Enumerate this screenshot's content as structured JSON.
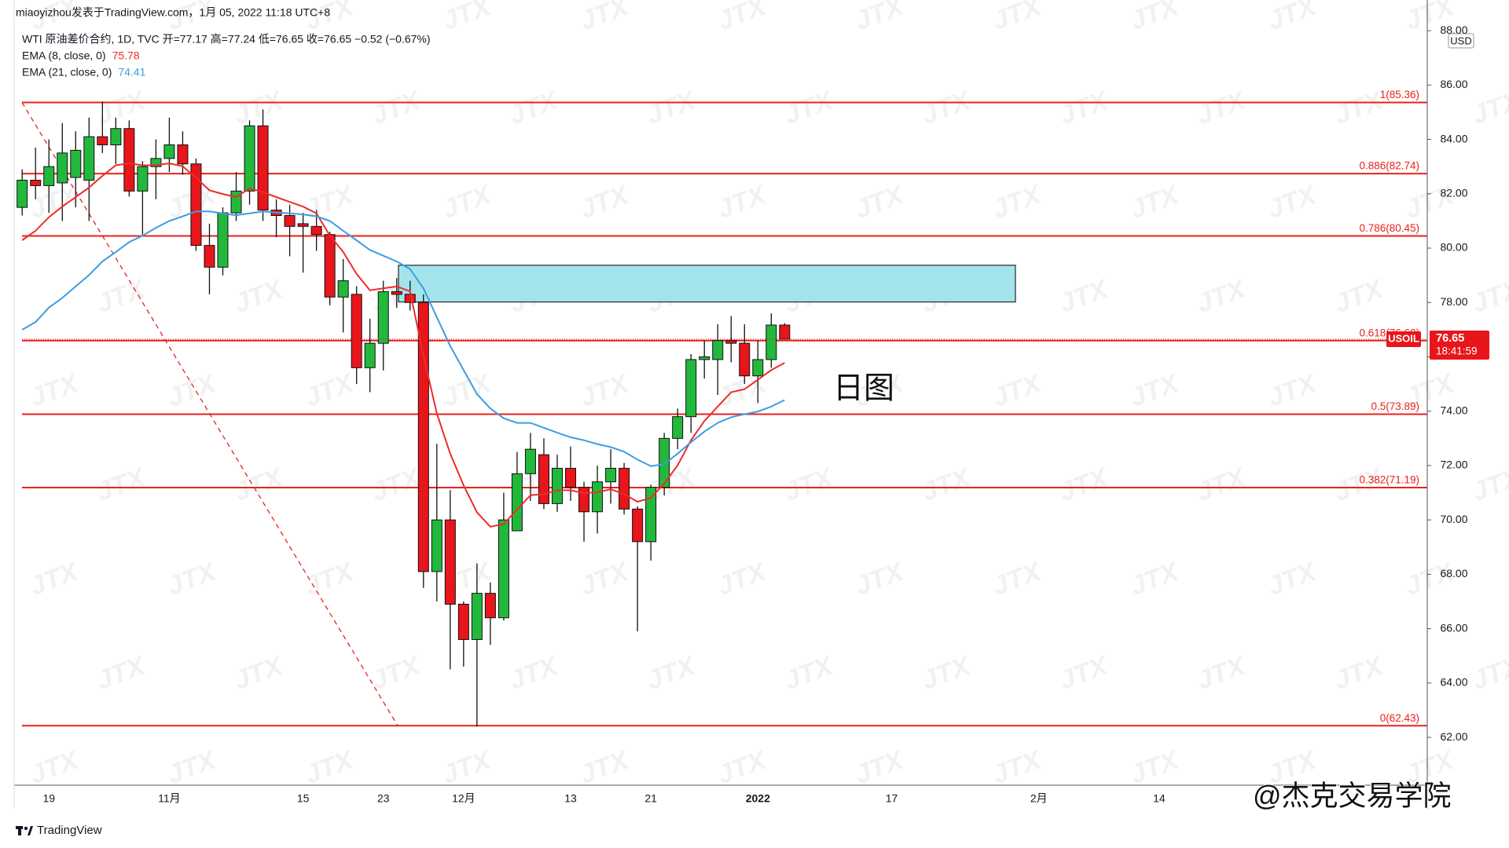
{
  "header": {
    "published": "miaoyizhou发表于TradingView.com，1月 05, 2022 11:18 UTC+8",
    "legend": "WTI 原油差价合约, 1D, TVC  开=77.17  高=77.24  低=76.65  收=76.65  −0.52 (−0.67%)"
  },
  "footer": {
    "logo": "TradingView",
    "credit": "@杰克交易学院"
  },
  "watermark": "JTX",
  "chart_data": {
    "type": "candlestick",
    "categories": [
      null,
      null,
      "19",
      null,
      null,
      null,
      null,
      null,
      null,
      null,
      null,
      "11月",
      null,
      null,
      null,
      null,
      null,
      null,
      null,
      null,
      null,
      "15",
      null,
      null,
      null,
      null,
      null,
      "23",
      null,
      null,
      null,
      null,
      null,
      "12月",
      null,
      null,
      null,
      null,
      null,
      null,
      null,
      "13",
      null,
      null,
      null,
      null,
      null,
      "21",
      null,
      null,
      null,
      null,
      null,
      null,
      null,
      "2022",
      null,
      null,
      null,
      null,
      null,
      null,
      null,
      null,
      null,
      "17",
      null,
      null,
      null,
      null,
      null,
      null,
      null,
      null,
      null,
      null,
      "2月",
      null,
      null,
      null,
      null,
      null,
      null,
      null,
      null,
      "14"
    ],
    "open": [
      81.5,
      82.5,
      82.3,
      82.4,
      82.6,
      82.5,
      84.1,
      83.8,
      84.4,
      82.1,
      83.0,
      83.3,
      83.8,
      83.1,
      80.1,
      79.3,
      81.3,
      82.1,
      84.5,
      81.4,
      81.2,
      80.9,
      80.8,
      80.5,
      78.2,
      78.3,
      75.6,
      76.5,
      78.4,
      78.3,
      78.0,
      68.1,
      70.0,
      66.9,
      65.6,
      67.3,
      66.4,
      69.6,
      71.7,
      72.4,
      70.6,
      71.9,
      71.2,
      70.3,
      71.4,
      71.9,
      70.4,
      69.2,
      71.2,
      73.0,
      73.8,
      75.9,
      75.9,
      76.6,
      76.5,
      75.3,
      75.9,
      77.17,
      null,
      null,
      null,
      null,
      null,
      null,
      null,
      null,
      null,
      null,
      null,
      null,
      null,
      null,
      null,
      null,
      null,
      null,
      null,
      null,
      null,
      null,
      null,
      null,
      null,
      null,
      null,
      null
    ],
    "high": [
      82.9,
      83.7,
      84.0,
      84.6,
      84.3,
      84.8,
      85.4,
      84.8,
      84.7,
      83.2,
      84.0,
      84.8,
      84.3,
      83.3,
      80.9,
      81.5,
      82.8,
      84.7,
      85.1,
      81.8,
      81.6,
      81.3,
      81.4,
      80.6,
      79.6,
      78.6,
      77.4,
      78.8,
      78.9,
      78.8,
      78.3,
      72.8,
      71.1,
      67.0,
      68.4,
      67.7,
      71.0,
      72.5,
      73.2,
      73.0,
      72.4,
      72.7,
      71.4,
      72.0,
      72.6,
      72.1,
      70.5,
      71.3,
      73.2,
      74.1,
      76.1,
      76.6,
      77.2,
      77.5,
      77.2,
      76.6,
      77.6,
      77.24,
      null,
      null,
      null,
      null,
      null,
      null,
      null,
      null,
      null,
      null,
      null,
      null,
      null,
      null,
      null,
      null,
      null,
      null,
      null,
      null,
      null,
      null,
      null,
      null,
      null,
      null,
      null,
      null
    ],
    "low": [
      81.2,
      81.8,
      81.3,
      81.0,
      81.5,
      81.0,
      83.5,
      83.1,
      81.9,
      80.5,
      81.8,
      82.8,
      82.7,
      79.9,
      78.3,
      79.0,
      81.0,
      81.6,
      81.0,
      80.4,
      79.7,
      79.1,
      79.9,
      77.9,
      76.9,
      75.0,
      74.7,
      75.5,
      77.8,
      77.7,
      67.5,
      67.0,
      64.5,
      64.6,
      62.4,
      65.4,
      66.3,
      69.6,
      70.7,
      70.4,
      70.3,
      70.7,
      69.2,
      69.5,
      70.6,
      70.2,
      65.9,
      68.5,
      70.9,
      72.6,
      73.2,
      75.2,
      74.6,
      75.8,
      75.0,
      74.3,
      75.6,
      76.65,
      null,
      null,
      null,
      null,
      null,
      null,
      null,
      null,
      null,
      null,
      null,
      null,
      null,
      null,
      null,
      null,
      null,
      null,
      null,
      null,
      null,
      null,
      null,
      null,
      null,
      null,
      null,
      null
    ],
    "close": [
      82.5,
      82.3,
      83.0,
      83.5,
      83.6,
      84.1,
      83.8,
      84.4,
      82.1,
      83.0,
      83.3,
      83.8,
      83.1,
      80.1,
      79.3,
      81.3,
      82.1,
      84.5,
      81.4,
      81.2,
      80.8,
      80.8,
      80.5,
      78.2,
      78.8,
      75.6,
      76.5,
      78.4,
      78.3,
      78.0,
      68.1,
      70.0,
      66.9,
      65.6,
      67.3,
      66.4,
      70.0,
      71.7,
      72.6,
      70.6,
      71.9,
      71.2,
      70.3,
      71.4,
      71.9,
      70.4,
      69.2,
      71.2,
      73.0,
      73.8,
      75.9,
      76.0,
      76.6,
      76.5,
      75.3,
      75.9,
      77.17,
      76.65,
      null,
      null,
      null,
      null,
      null,
      null,
      null,
      null,
      null,
      null,
      null,
      null,
      null,
      null,
      null,
      null,
      null,
      null,
      null,
      null,
      null,
      null,
      null,
      null,
      null,
      null,
      null,
      null
    ],
    "up_color": "#22b83c",
    "down_color": "#e8151b",
    "series": [
      {
        "name": "EMA (8, close, 0)",
        "color": "#ef2b2b",
        "values": [
          80.29,
          80.64,
          81.14,
          81.53,
          81.88,
          82.23,
          82.66,
          83.05,
          83.12,
          83.05,
          83.05,
          83.12,
          83.01,
          82.59,
          82.13,
          81.99,
          81.88,
          82.2,
          82.06,
          81.88,
          81.7,
          81.53,
          81.28,
          80.46,
          79.86,
          79.05,
          78.45,
          78.52,
          78.59,
          78.41,
          76.04,
          73.92,
          72.44,
          71.27,
          70.28,
          69.75,
          69.85,
          70.38,
          70.91,
          70.95,
          71.09,
          71.09,
          70.98,
          71.02,
          71.13,
          70.95,
          70.67,
          70.81,
          71.34,
          72.01,
          72.93,
          73.64,
          74.17,
          74.7,
          74.81,
          75.16,
          75.51,
          75.78,
          null,
          null,
          null,
          null,
          null,
          null,
          null,
          null,
          null,
          null,
          null,
          null,
          null,
          null,
          null,
          null,
          null,
          null,
          null,
          null,
          null,
          null,
          null,
          null,
          null,
          null,
          null,
          null
        ]
      },
      {
        "name": "EMA (21, close, 0)",
        "color": "#3d9de3",
        "values": [
          77.0,
          77.28,
          77.81,
          78.17,
          78.59,
          79.01,
          79.51,
          79.86,
          80.22,
          80.46,
          80.75,
          81.0,
          81.17,
          81.35,
          81.35,
          81.28,
          81.21,
          81.28,
          81.35,
          81.31,
          81.28,
          81.24,
          81.17,
          81.0,
          80.64,
          80.29,
          79.93,
          79.72,
          79.51,
          79.23,
          78.52,
          77.46,
          76.4,
          75.51,
          74.63,
          74.1,
          73.74,
          73.57,
          73.57,
          73.39,
          73.21,
          73.04,
          72.93,
          72.79,
          72.68,
          72.51,
          72.22,
          71.98,
          72.05,
          72.44,
          72.86,
          73.25,
          73.57,
          73.78,
          73.89,
          73.99,
          74.17,
          74.41,
          null,
          null,
          null,
          null,
          null,
          null,
          null,
          null,
          null,
          null,
          null,
          null,
          null,
          null,
          null,
          null,
          null,
          null,
          null,
          null,
          null,
          null,
          null,
          null,
          null,
          null,
          null,
          null
        ]
      }
    ],
    "fib_levels": [
      {
        "label": "1(85.36)",
        "value": 85.36
      },
      {
        "label": "0.886(82.74)",
        "value": 82.74
      },
      {
        "label": "0.786(80.45)",
        "value": 80.45
      },
      {
        "label": "0.618(76.60)",
        "value": 76.6
      },
      {
        "label": "0.5(73.89)",
        "value": 73.89
      },
      {
        "label": "0.382(71.19)",
        "value": 71.19
      },
      {
        "label": "0(62.43)",
        "value": 62.43
      }
    ],
    "fib_color": "#e8221c",
    "zone": {
      "high": 79.37,
      "low": 78.02,
      "color": "#a3e4ec"
    },
    "annotation": "日图",
    "symbol": "USOIL",
    "countdown": "18:41:59",
    "y_unit": "USD",
    "ylim": [
      60.24,
      89.13
    ],
    "yticks": [
      {
        "value": 62,
        "label": "62.00"
      },
      {
        "value": 64,
        "label": "64.00"
      },
      {
        "value": 66,
        "label": "66.00"
      },
      {
        "value": 68,
        "label": "68.00"
      },
      {
        "value": 70,
        "label": "70.00"
      },
      {
        "value": 72,
        "label": "72.00"
      },
      {
        "value": 74,
        "label": "74.00"
      },
      {
        "value": 76,
        "label": "76.00"
      },
      {
        "value": 78,
        "label": "78.00"
      },
      {
        "value": 80,
        "label": "80.00"
      },
      {
        "value": 82,
        "label": "82.00"
      },
      {
        "value": 84,
        "label": "84.00"
      },
      {
        "value": 86,
        "label": "86.00"
      },
      {
        "value": 88,
        "label": "88.00"
      }
    ],
    "grid": false
  }
}
